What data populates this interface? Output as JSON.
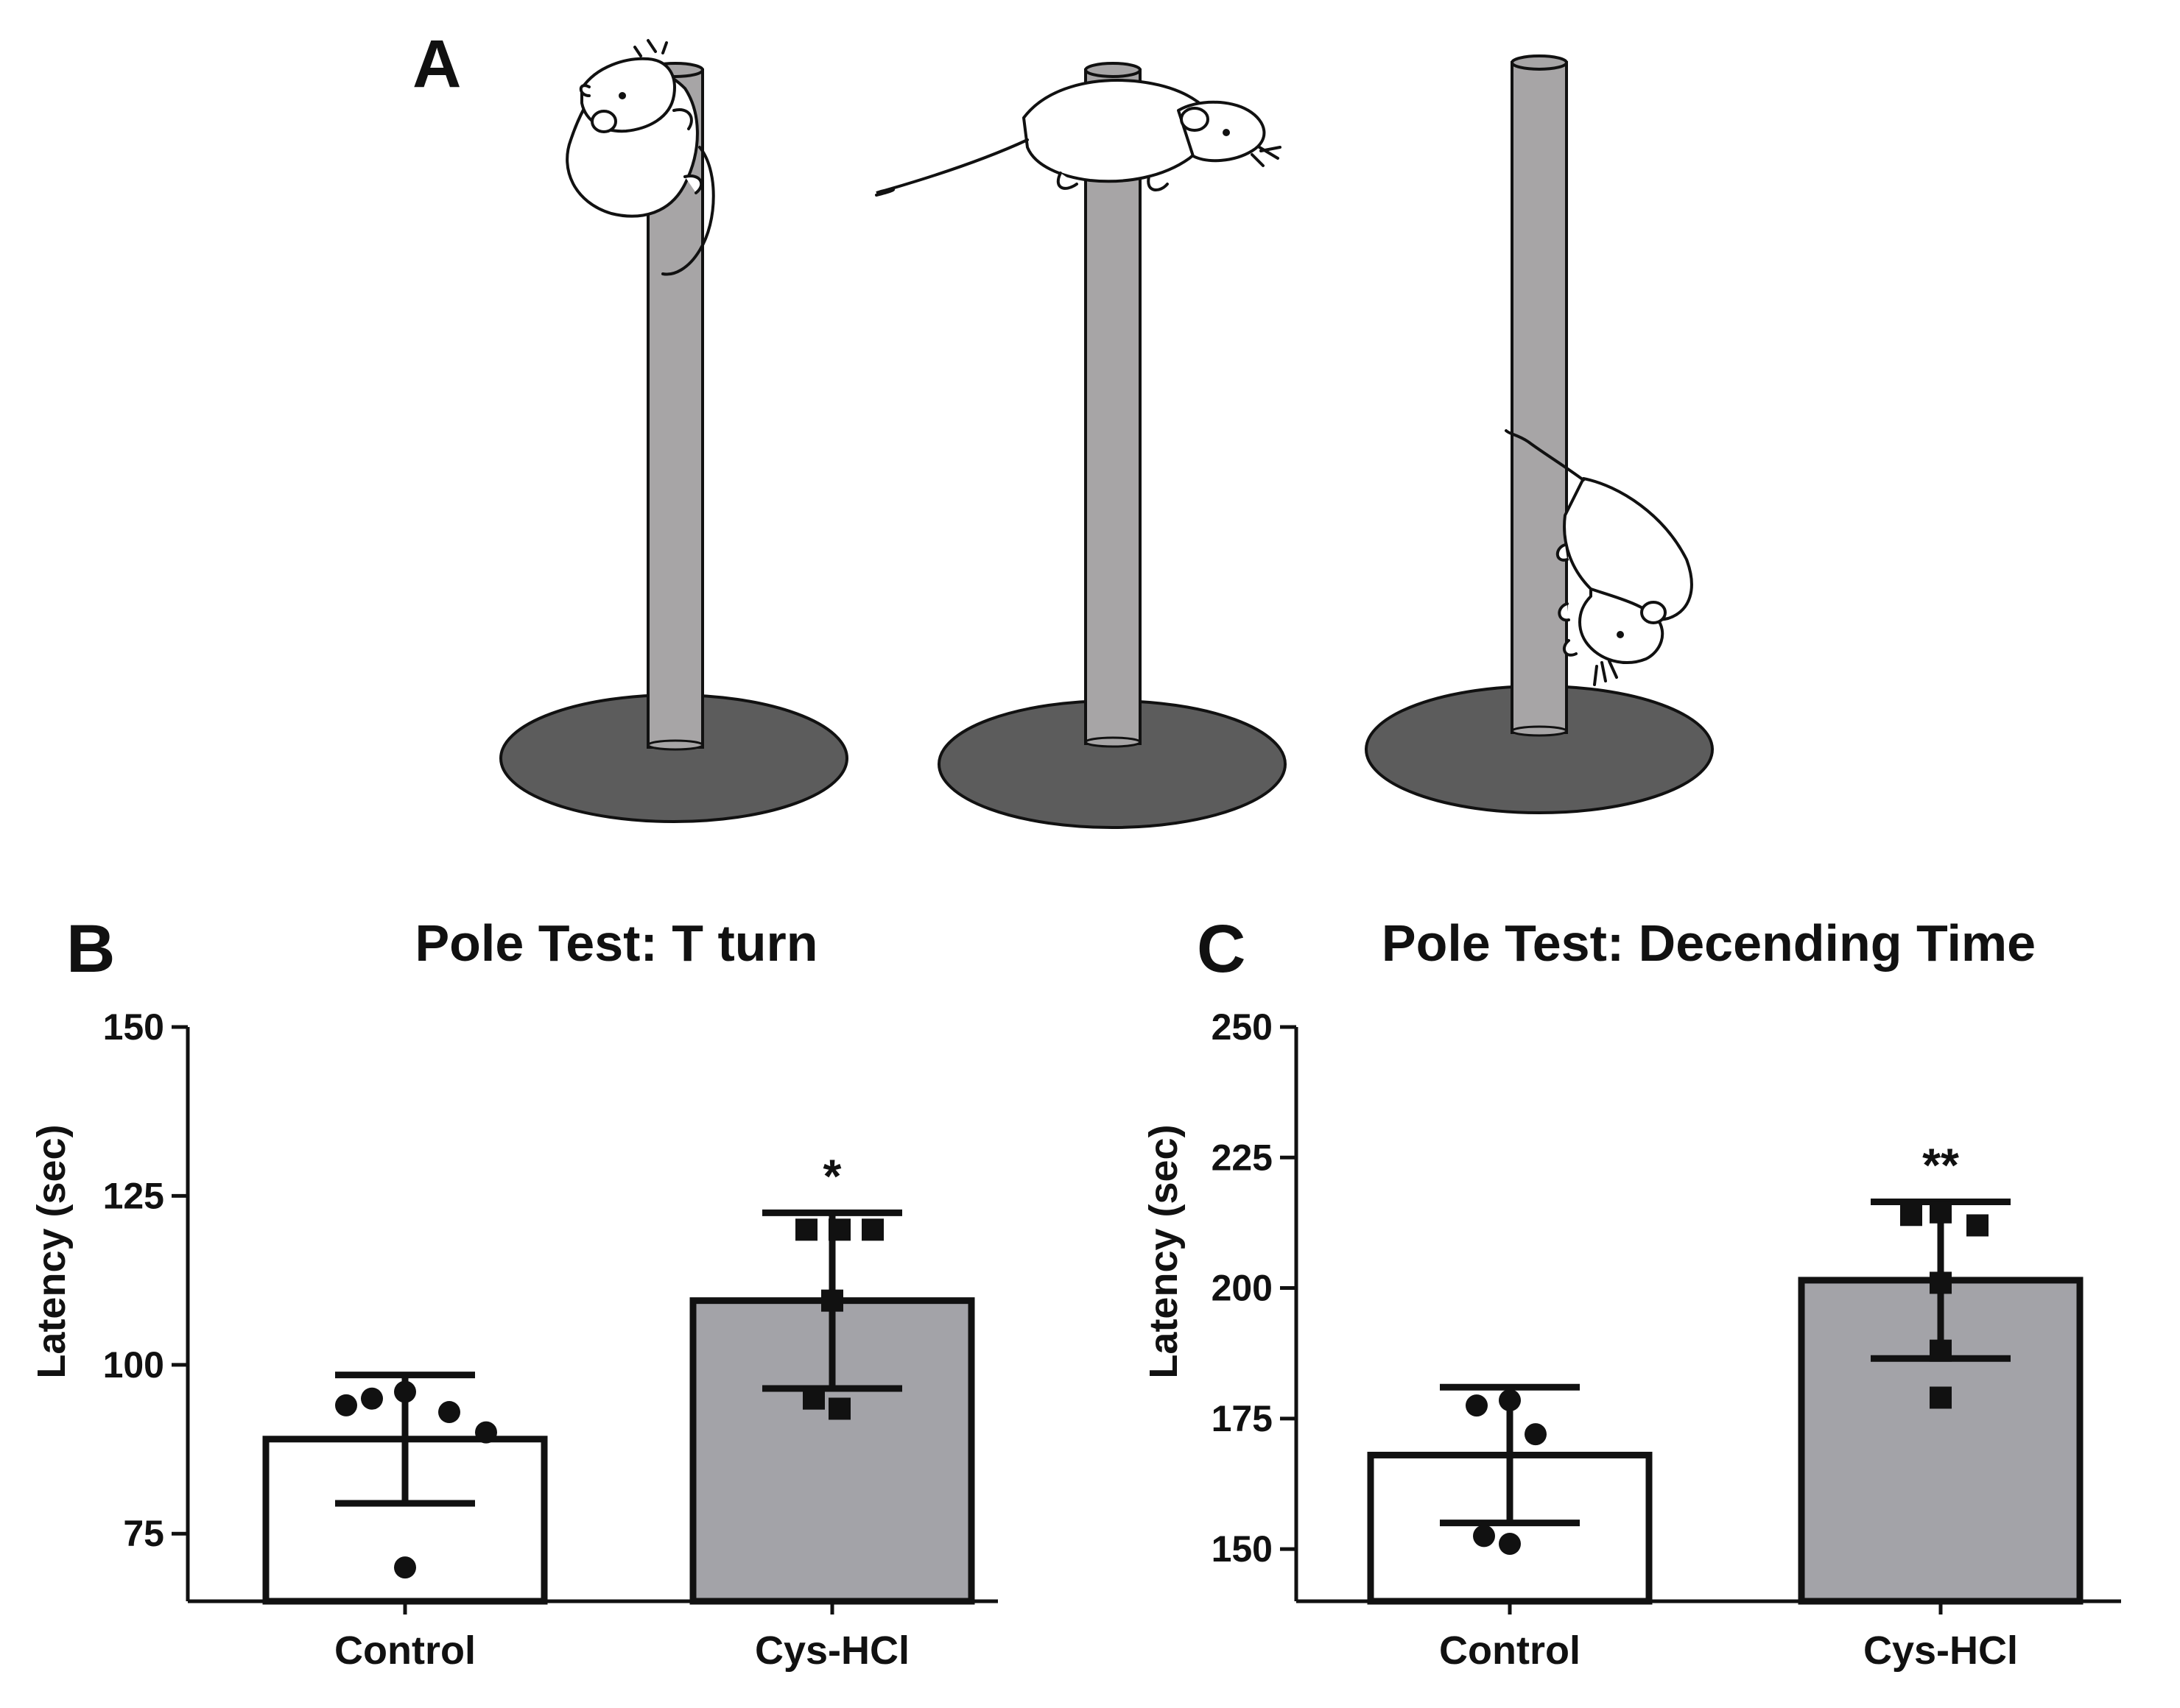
{
  "panels": {
    "a": "A",
    "b": "B",
    "c": "C"
  },
  "colors": {
    "pole_fill": "#a7a5a6",
    "base_fill": "#5c5c5c",
    "control_bar": "#ffffff",
    "treatment_bar": "#a3a3a8",
    "ink": "#111111"
  },
  "illustration": {
    "poles": [
      {
        "name": "pole-climb",
        "rat": "rat-climbing-up"
      },
      {
        "name": "pole-top",
        "rat": "rat-on-top"
      },
      {
        "name": "pole-descend",
        "rat": "rat-descending"
      }
    ]
  },
  "chart_data": [
    {
      "id": "B",
      "type": "bar",
      "title": "Pole Test: T turn",
      "xlabel": "",
      "ylabel": "Latency (sec)",
      "ylim": [
        65,
        150
      ],
      "yticks": [
        75,
        100,
        125,
        150
      ],
      "categories": [
        "Control",
        "Cys-HCl"
      ],
      "values": [
        89,
        109.5
      ],
      "errors": [
        9.5,
        13
      ],
      "points": [
        [
          94,
          95,
          96,
          93,
          90,
          70
        ],
        [
          120,
          120,
          120,
          109.5,
          95,
          93.5
        ]
      ],
      "markers": [
        "circle",
        "square"
      ],
      "significance": [
        "",
        "*"
      ]
    },
    {
      "id": "C",
      "type": "bar",
      "title": "Pole Test: Decending Time",
      "xlabel": "",
      "ylabel": "Latency (sec)",
      "ylim": [
        140,
        250
      ],
      "yticks": [
        150,
        175,
        200,
        225,
        250
      ],
      "categories": [
        "Control",
        "Cys-HCl"
      ],
      "values": [
        168,
        201.5
      ],
      "errors": [
        13,
        15
      ],
      "points": [
        [
          177.5,
          178.5,
          172,
          152.5,
          151
        ],
        [
          214,
          214.5,
          212,
          201,
          188,
          179
        ]
      ],
      "markers": [
        "circle",
        "square"
      ],
      "significance": [
        "",
        "**"
      ]
    }
  ]
}
